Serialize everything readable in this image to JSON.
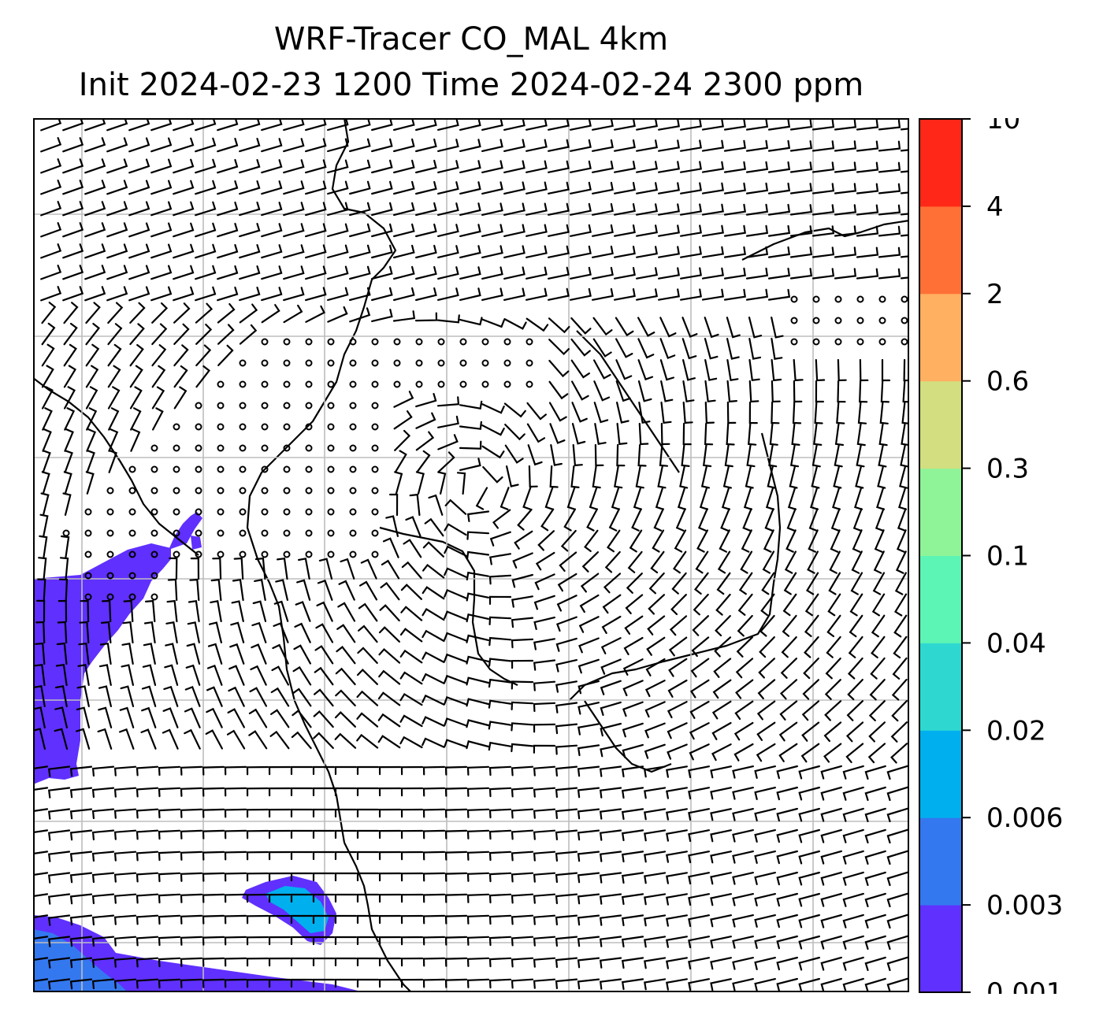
{
  "title": {
    "line1": "WRF-Tracer CO_MAL 4km",
    "line2": "Init 2024-02-23 1200 Time 2024-02-24 2300 ppm"
  },
  "colorbar": {
    "levels": [
      "0.001",
      "0.003",
      "0.006",
      "0.02",
      "0.04",
      "0.1",
      "0.3",
      "0.6",
      "2",
      "4",
      "10"
    ],
    "colors": [
      "#6030ff",
      "#3478f0",
      "#00b0ee",
      "#2ed8d0",
      "#5cf5b6",
      "#8ff497",
      "#d3de80",
      "#ffb060",
      "#ff7036",
      "#ff2818"
    ]
  },
  "map": {
    "field_colors": {
      "deep_purple": "#6030ff",
      "blue": "#3478f0",
      "cyan": "#00b0ee"
    },
    "coastline_color": "#000000",
    "grid_color": "#bdbdbd",
    "barb_color": "#000000"
  }
}
